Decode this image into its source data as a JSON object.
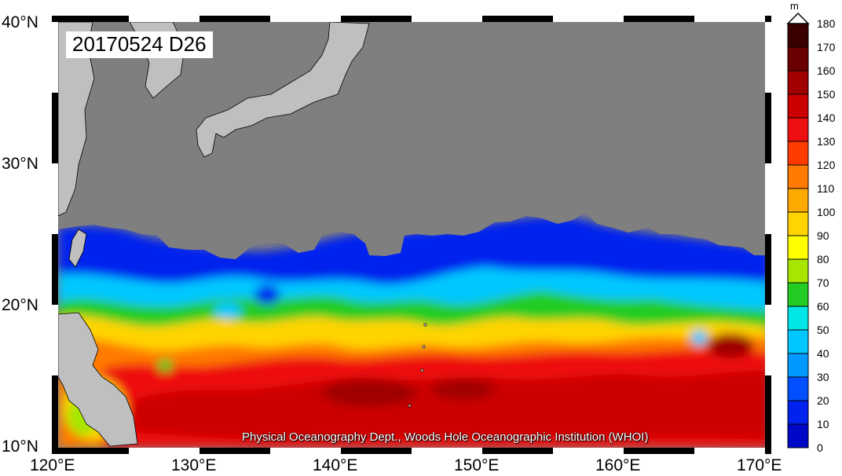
{
  "map": {
    "title": "20170524 D26",
    "credit": "Physical Oceanography Dept., Woods Hole Oceanographic Institution (WHOI)",
    "lat_labels": [
      "40°N",
      "30°N",
      "20°N",
      "10°N"
    ],
    "lon_labels": [
      "120°E",
      "130°E",
      "140°E",
      "150°E",
      "160°E",
      "170°E"
    ],
    "land_color": "#bfbfbf",
    "nodata_color": "#7f7f7f",
    "variable": "D26 (depth of 26°C isotherm)"
  },
  "colorbar": {
    "unit": "m",
    "ticks": [
      "180",
      "170",
      "160",
      "150",
      "140",
      "130",
      "120",
      "110",
      "100",
      "90",
      "80",
      "70",
      "60",
      "50",
      "40",
      "30",
      "20",
      "10",
      "0"
    ],
    "colors": [
      "#3a0000",
      "#6b0000",
      "#a00000",
      "#cc0000",
      "#ee1010",
      "#ff3b00",
      "#ff7a00",
      "#ffaa00",
      "#ffd400",
      "#ffff00",
      "#a8e600",
      "#22cc22",
      "#00e6e6",
      "#00c8ff",
      "#0099ff",
      "#0050ff",
      "#0022ee",
      "#0008c8",
      "#00007a"
    ]
  }
}
